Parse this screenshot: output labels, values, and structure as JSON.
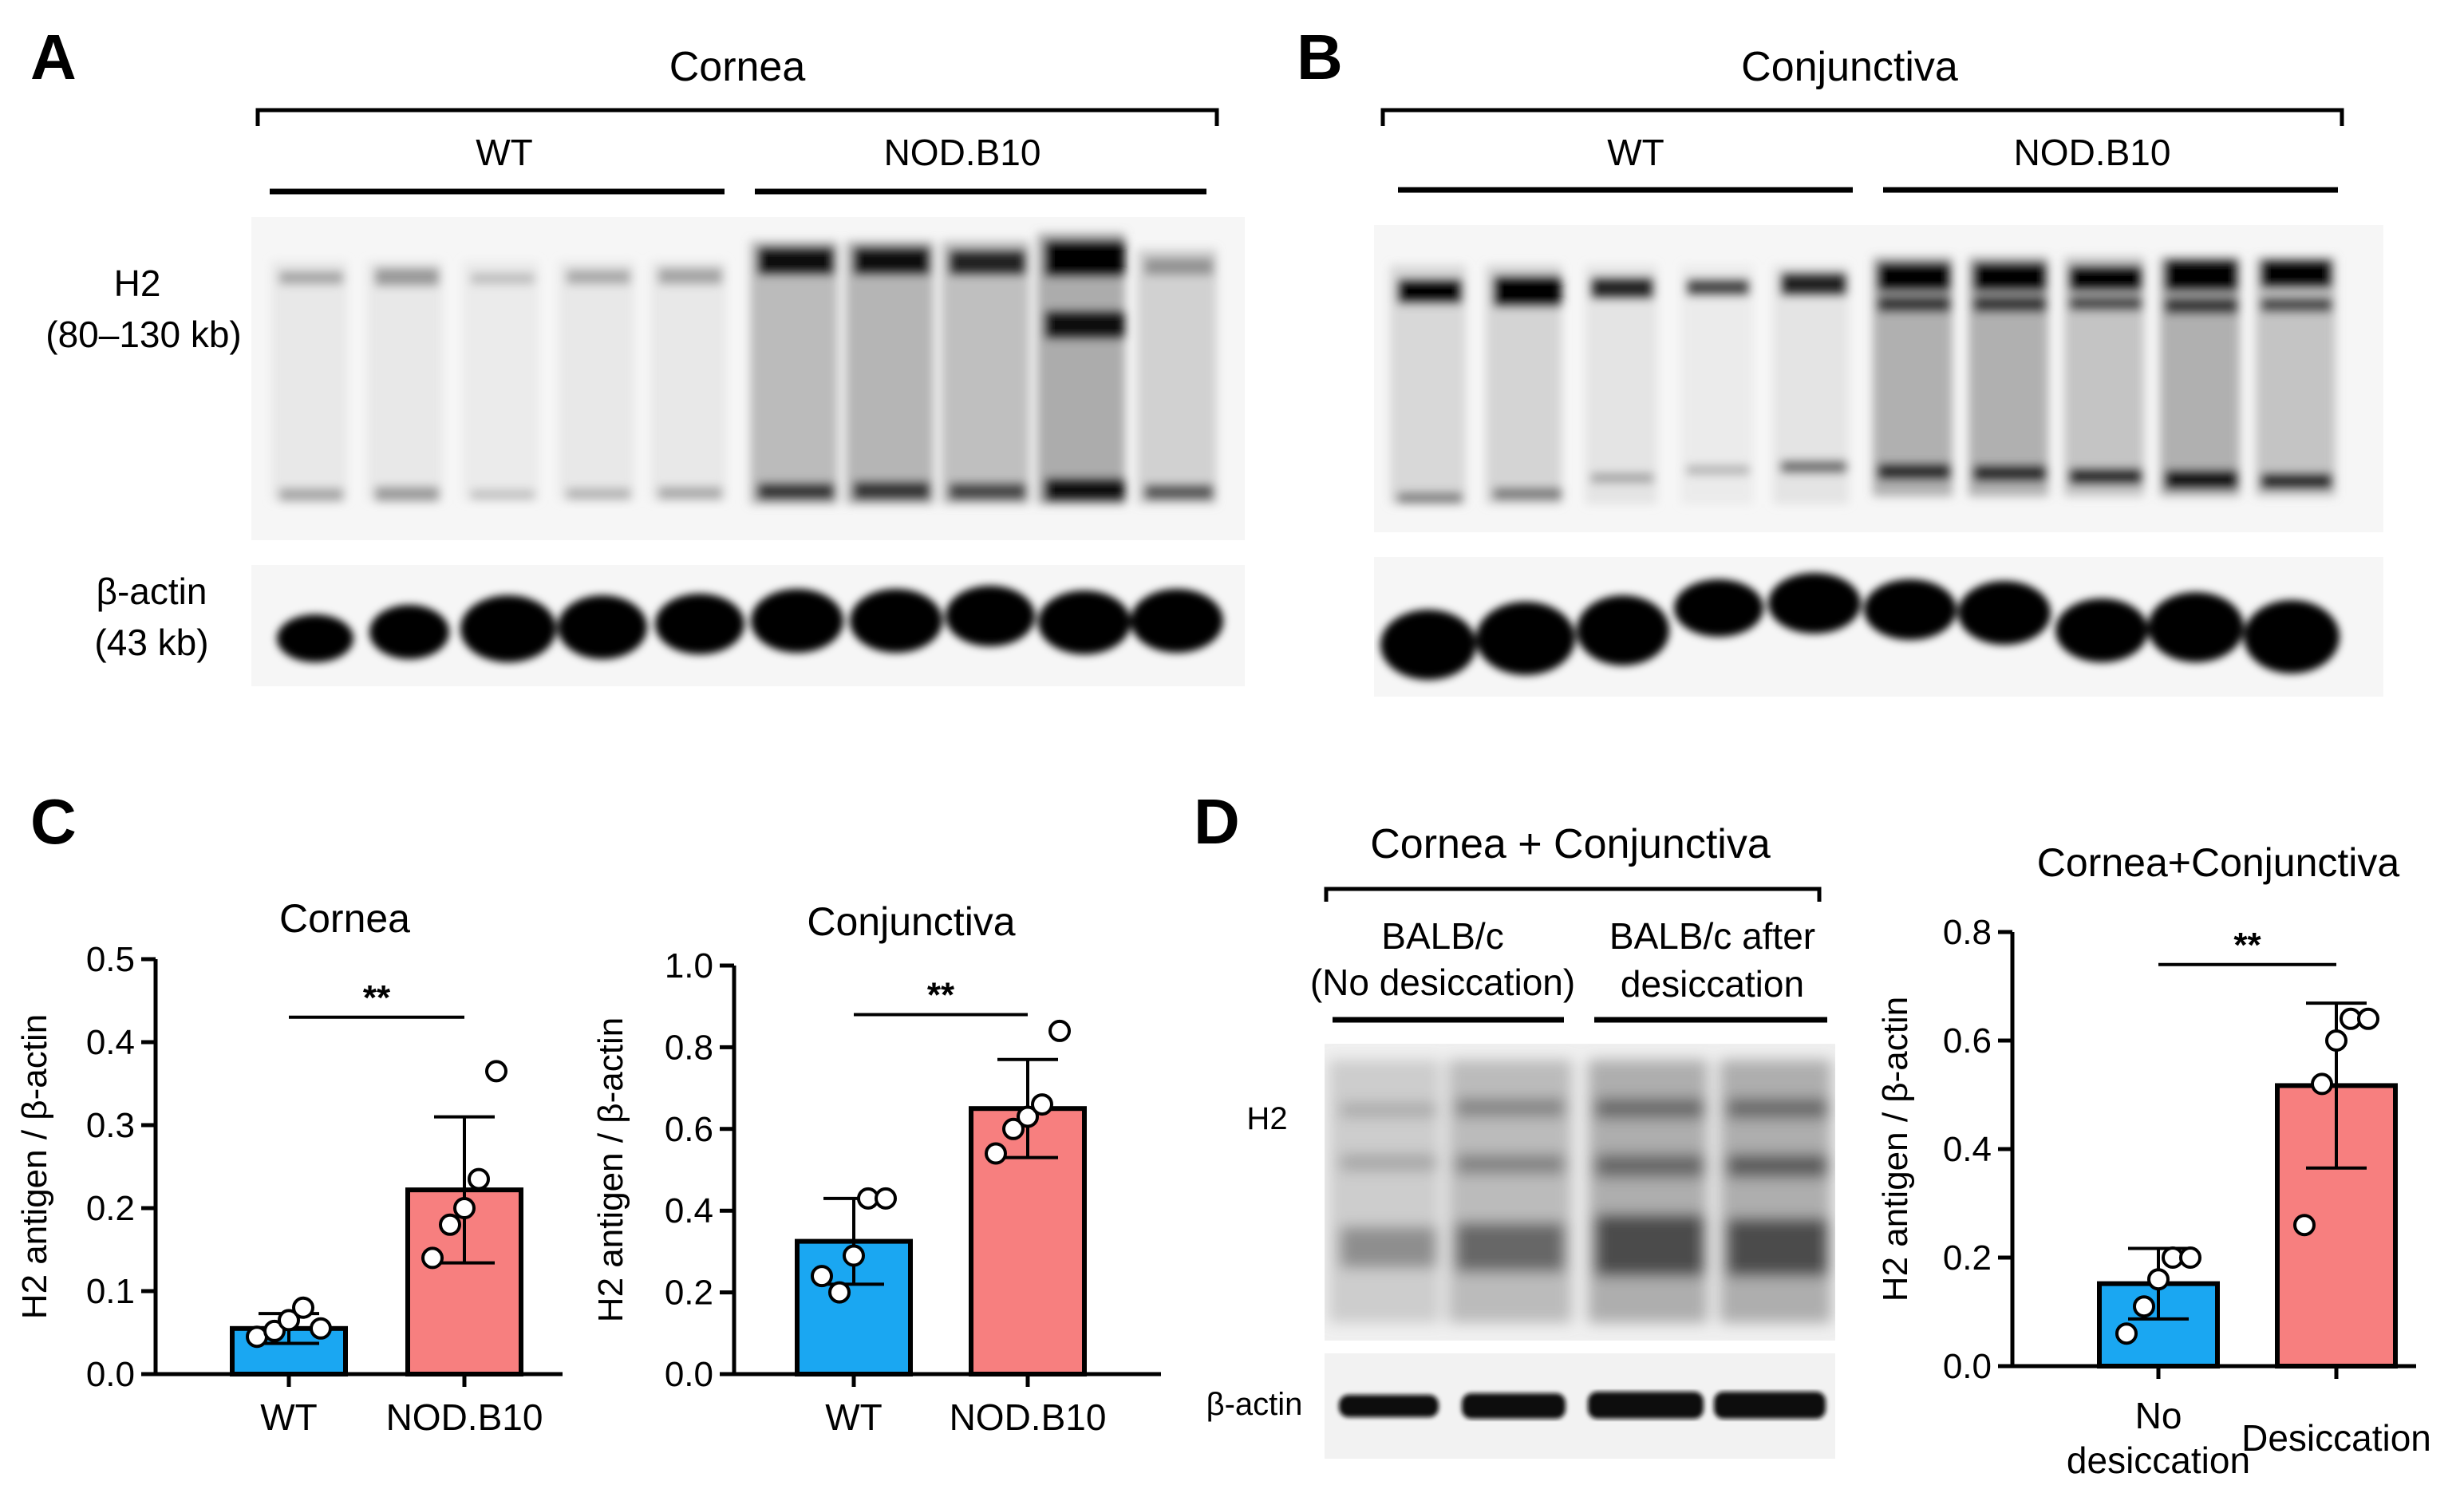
{
  "panels": {
    "A": {
      "label": "A",
      "tissue": "Cornea",
      "groups": [
        "WT",
        "NOD.B10"
      ],
      "h2_label": "H2",
      "h2_size": "(80–130 kb)",
      "actin_label": "β-actin",
      "actin_size": "(43 kb)"
    },
    "B": {
      "label": "B",
      "tissue": "Conjunctiva",
      "groups": [
        "WT",
        "NOD.B10"
      ]
    },
    "C": {
      "label": "C"
    },
    "D": {
      "label": "D",
      "tissue": "Cornea + Conjunctiva",
      "group1_line1": "BALB/c",
      "group1_line2": "(No desiccation)",
      "group2_line1": "BALB/c after",
      "group2_line2": "desiccation",
      "h2_label": "H2",
      "actin_label": "β-actin"
    }
  },
  "chart_data": [
    {
      "type": "bar",
      "title": "Cornea",
      "ylabel": "H2 antigen / β-actin",
      "ylim": [
        0,
        0.5
      ],
      "yticks": [
        "0.0",
        "0.1",
        "0.2",
        "0.3",
        "0.4",
        "0.5"
      ],
      "categories": [
        "WT",
        "NOD.B10"
      ],
      "values": [
        0.055,
        0.222
      ],
      "sd": [
        0.018,
        0.088
      ],
      "colors": [
        "#1aa7f2",
        "#f77f7f"
      ],
      "points": [
        [
          0.045,
          0.052,
          0.065,
          0.08,
          0.055
        ],
        [
          0.14,
          0.18,
          0.2,
          0.235,
          0.365
        ]
      ],
      "significance": "**"
    },
    {
      "type": "bar",
      "title": "Conjunctiva",
      "ylabel": "H2 antigen / β-actin",
      "ylim": [
        0,
        1.0
      ],
      "yticks": [
        "0.0",
        "0.2",
        "0.4",
        "0.6",
        "0.8",
        "1.0"
      ],
      "categories": [
        "WT",
        "NOD.B10"
      ],
      "values": [
        0.325,
        0.65
      ],
      "sd": [
        0.105,
        0.12
      ],
      "colors": [
        "#1aa7f2",
        "#f77f7f"
      ],
      "points": [
        [
          0.24,
          0.2,
          0.29,
          0.43,
          0.43
        ],
        [
          0.54,
          0.6,
          0.63,
          0.66,
          0.84
        ]
      ],
      "significance": "**"
    },
    {
      "type": "bar",
      "title": "Cornea+Conjunctiva",
      "ylabel": "H2 antigen / β-actin",
      "ylim": [
        0,
        0.8
      ],
      "yticks": [
        "0.0",
        "0.2",
        "0.4",
        "0.6",
        "0.8"
      ],
      "categories": [
        "No desiccation",
        "Desiccation"
      ],
      "values": [
        0.152,
        0.517
      ],
      "sd": [
        0.065,
        0.152
      ],
      "colors": [
        "#1aa7f2",
        "#f77f7f"
      ],
      "points": [
        [
          0.06,
          0.11,
          0.16,
          0.2,
          0.2
        ],
        [
          0.26,
          0.52,
          0.6,
          0.64,
          0.64
        ]
      ],
      "significance": "**"
    }
  ]
}
